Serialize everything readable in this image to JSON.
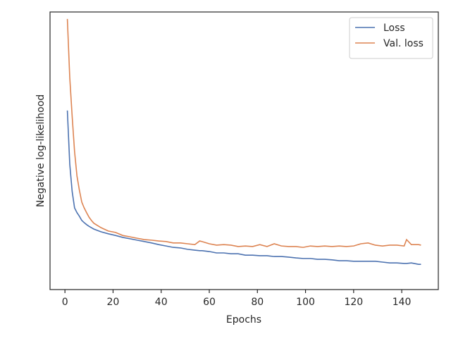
{
  "chart_data": {
    "type": "line",
    "xlabel": "Epochs",
    "ylabel": "Negative log-likelihood",
    "x": [
      1,
      2,
      3,
      4,
      5,
      6,
      7,
      8,
      9,
      10,
      11,
      12,
      15,
      18,
      21,
      24,
      27,
      30,
      33,
      36,
      39,
      42,
      45,
      48,
      51,
      54,
      56,
      57,
      60,
      63,
      66,
      69,
      72,
      75,
      78,
      81,
      84,
      87,
      90,
      93,
      96,
      99,
      102,
      105,
      108,
      111,
      114,
      117,
      120,
      123,
      126,
      129,
      132,
      135,
      138,
      141,
      142,
      144,
      147,
      148
    ],
    "series": [
      {
        "name": "Loss",
        "color": "#4c72b0",
        "values": [
          64.5,
          45.2,
          35.3,
          29.4,
          27.7,
          26.4,
          24.9,
          24.1,
          23.4,
          22.8,
          22.3,
          21.8,
          20.8,
          20.1,
          19.5,
          18.8,
          18.3,
          17.8,
          17.3,
          16.8,
          16.2,
          15.7,
          15.2,
          15.0,
          14.5,
          14.2,
          14.0,
          14.0,
          13.7,
          13.2,
          13.2,
          12.9,
          12.9,
          12.4,
          12.4,
          12.2,
          12.2,
          11.9,
          11.9,
          11.7,
          11.4,
          11.2,
          11.2,
          10.9,
          10.9,
          10.7,
          10.4,
          10.4,
          10.2,
          10.2,
          10.2,
          10.2,
          9.9,
          9.6,
          9.6,
          9.4,
          9.4,
          9.6,
          9.1,
          9.1
        ]
      },
      {
        "name": "Val. loss",
        "color": "#dd8452",
        "values": [
          97.5,
          76.4,
          62.4,
          49.7,
          40.9,
          35.8,
          31.5,
          29.4,
          27.7,
          26.1,
          24.9,
          23.9,
          22.3,
          21.1,
          20.6,
          19.5,
          19.0,
          18.5,
          18.0,
          17.8,
          17.5,
          17.3,
          16.8,
          16.8,
          16.5,
          16.2,
          17.5,
          17.3,
          16.5,
          16.0,
          16.2,
          16.0,
          15.5,
          15.7,
          15.5,
          16.2,
          15.5,
          16.5,
          15.7,
          15.5,
          15.5,
          15.2,
          15.7,
          15.5,
          15.7,
          15.5,
          15.7,
          15.5,
          15.7,
          16.5,
          16.8,
          16.0,
          15.7,
          16.0,
          16.0,
          15.7,
          18.0,
          16.2,
          16.2,
          16.0
        ]
      }
    ],
    "xlim": [
      -6.2,
      155.2
    ],
    "ylim": [
      0,
      100
    ],
    "xticks": [
      0,
      20,
      40,
      60,
      80,
      100,
      120,
      140
    ],
    "legend": "upper right"
  }
}
